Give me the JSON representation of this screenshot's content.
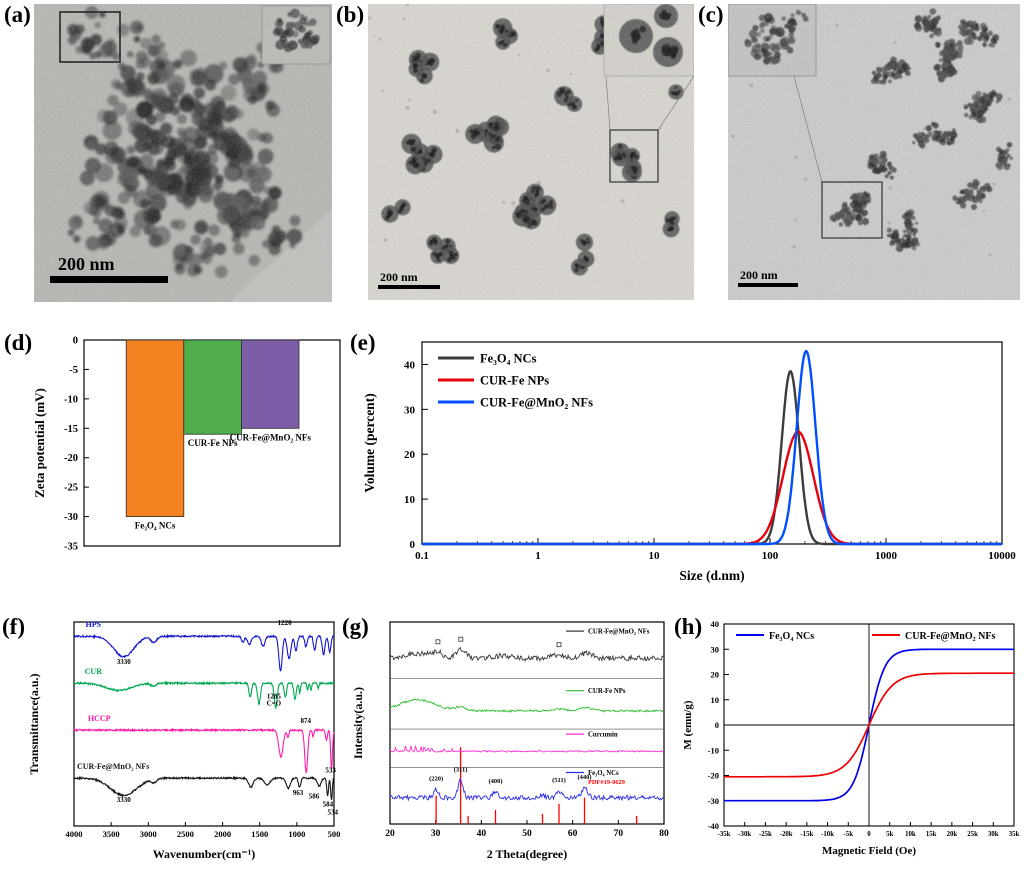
{
  "figure": {
    "panels": {
      "a": {
        "label": "(a)",
        "scale_bar": "200 nm"
      },
      "b": {
        "label": "(b)",
        "scale_bar": "200 nm"
      },
      "c": {
        "label": "(c)",
        "scale_bar": "200 nm"
      },
      "d": {
        "label": "(d)"
      },
      "e": {
        "label": "(e)"
      },
      "f": {
        "label": "(f)"
      },
      "g": {
        "label": "(g)"
      },
      "h": {
        "label": "(h)"
      }
    }
  },
  "chart_data": [
    {
      "id": "zeta",
      "panel": "d",
      "type": "bar",
      "ylabel": "Zeta potential (mV)",
      "ylim": [
        -35,
        0
      ],
      "yticks": [
        0,
        -5,
        -10,
        -15,
        -20,
        -25,
        -30,
        -35
      ],
      "categories": [
        "Fe₃O₄ NCs",
        "CUR-Fe NPs",
        "CUR-Fe@MnO₂ NFs"
      ],
      "values": [
        -30,
        -16,
        -15
      ],
      "colors": [
        "#F58220",
        "#4FAE4A",
        "#7B5EA7"
      ]
    },
    {
      "id": "dls",
      "panel": "e",
      "type": "line",
      "xlabel": "Size (d.nm)",
      "ylabel": "Volume (percent)",
      "xscale": "log",
      "xlim": [
        0.1,
        10000
      ],
      "xticks": [
        "0.1",
        "1",
        "10",
        "100",
        "1000",
        "10000"
      ],
      "ylim": [
        0,
        45
      ],
      "yticks": [
        0,
        10,
        20,
        30,
        40
      ],
      "series": [
        {
          "name": "Fe₃O₄ NCs",
          "color": "#3C3C3C",
          "peak": 150,
          "height": 38.5,
          "sigma": 0.105
        },
        {
          "name": "CUR-Fe NPs",
          "color": "#E8000D",
          "peak": 175,
          "height": 25,
          "sigma": 0.185
        },
        {
          "name": "CUR-Fe@MnO₂ NFs",
          "color": "#0050FF",
          "peak": 205,
          "height": 43,
          "sigma": 0.115
        }
      ]
    },
    {
      "id": "ftir",
      "panel": "f",
      "type": "line",
      "xlabel": "Wavenumber(cm⁻¹)",
      "ylabel": "Transmittance(a.u.)",
      "xlim": [
        4000,
        500
      ],
      "xticks": [
        4000,
        3500,
        3000,
        2500,
        2000,
        1500,
        1000,
        500
      ],
      "series": [
        {
          "name": "HPS",
          "color": "#1414CC",
          "base": 0.93,
          "dips": [
            [
              3330,
              190,
              0.1
            ],
            [
              2925,
              55,
              0.03
            ],
            [
              1725,
              25,
              0.03
            ],
            [
              1640,
              35,
              0.04
            ],
            [
              1455,
              35,
              0.05
            ],
            [
              1220,
              32,
              0.17
            ],
            [
              1105,
              35,
              0.11
            ],
            [
              1012,
              25,
              0.07
            ],
            [
              878,
              22,
              0.05
            ],
            [
              760,
              22,
              0.07
            ],
            [
              640,
              26,
              0.09
            ],
            [
              558,
              22,
              0.08
            ]
          ]
        },
        {
          "name": "CUR",
          "color": "#00A94F",
          "base": 0.7,
          "dips": [
            [
              3400,
              240,
              0.035
            ],
            [
              2930,
              50,
              0.015
            ],
            [
              1628,
              24,
              0.07
            ],
            [
              1510,
              28,
              0.1
            ],
            [
              1285,
              28,
              0.12
            ],
            [
              1155,
              22,
              0.07
            ],
            [
              1025,
              22,
              0.08
            ],
            [
              962,
              14,
              0.05
            ],
            [
              856,
              13,
              0.035
            ],
            [
              810,
              13,
              0.035
            ],
            [
              713,
              13,
              0.025
            ]
          ]
        },
        {
          "name": "HCCP",
          "color": "#FF1AA6",
          "base": 0.47,
          "dips": [
            [
              1215,
              42,
              0.13
            ],
            [
              1120,
              18,
              0.035
            ],
            [
              874,
              28,
              0.21
            ],
            [
              782,
              14,
              0.035
            ],
            [
              602,
              18,
              0.05
            ],
            [
              533,
              17,
              0.19
            ]
          ]
        },
        {
          "name": "CUR-Fe@MnO₂ NFs",
          "color": "#151515",
          "base": 0.235,
          "dips": [
            [
              3330,
              250,
              0.085
            ],
            [
              2920,
              45,
              0.018
            ],
            [
              1620,
              45,
              0.045
            ],
            [
              1400,
              55,
              0.035
            ],
            [
              1115,
              40,
              0.05
            ],
            [
              963,
              22,
              0.045
            ],
            [
              700,
              35,
              0.04
            ],
            [
              586,
              16,
              0.09
            ],
            [
              534,
              15,
              0.11
            ]
          ]
        }
      ],
      "annotations": [
        {
          "text": "3330",
          "x": 3330,
          "y": 0.795
        },
        {
          "text": "1220",
          "x": 1165,
          "y": 0.985
        },
        {
          "text": "1285",
          "x": 1310,
          "y": 0.625
        },
        {
          "text": "C=O",
          "x": 1310,
          "y": 0.59
        },
        {
          "text": "874",
          "x": 880,
          "y": 0.505
        },
        {
          "text": "533",
          "x": 545,
          "y": 0.262
        },
        {
          "text": "3330",
          "x": 3330,
          "y": 0.118
        },
        {
          "text": "963",
          "x": 985,
          "y": 0.152
        },
        {
          "text": "586",
          "x": 770,
          "y": 0.135
        },
        {
          "text": "584",
          "x": 582,
          "y": 0.095
        },
        {
          "text": "534",
          "x": 516,
          "y": 0.057
        }
      ]
    },
    {
      "id": "xrd",
      "panel": "g",
      "type": "line",
      "xlabel": "2 Theta(degree)",
      "ylabel": "Intensity(a.u.)",
      "xlim": [
        20,
        80
      ],
      "xticks": [
        20,
        30,
        40,
        50,
        60,
        70,
        80
      ],
      "dividers": [
        0.72,
        0.47,
        0.28
      ],
      "series": [
        {
          "name": "CUR-Fe@MnO₂ NFs",
          "color": "#3A3A3A",
          "base": 0.82,
          "noise": 0.013,
          "peaks": [
            [
              26,
              4,
              0.025
            ],
            [
              30.5,
              1.5,
              0.025
            ],
            [
              35.5,
              1.5,
              0.045
            ],
            [
              44,
              3,
              0.012
            ],
            [
              57,
              2,
              0.018
            ],
            [
              63,
              2,
              0.025
            ]
          ],
          "markers": [
            30.5,
            35.5,
            57
          ]
        },
        {
          "name": "CUR-Fe NPs",
          "color": "#2FBF2F",
          "base": 0.56,
          "noise": 0.005,
          "peaks": [
            [
              26,
              5.5,
              0.055
            ],
            [
              35.5,
              1.6,
              0.018
            ],
            [
              57,
              2,
              0.01
            ],
            [
              62.8,
              2,
              0.016
            ]
          ]
        },
        {
          "name": "Curcumin",
          "color": "#FF30D0",
          "base": 0.36,
          "noise": 0.0035,
          "peaks": [
            [
              21.2,
              0.15,
              0.02
            ],
            [
              23.4,
              0.15,
              0.028
            ],
            [
              24.6,
              0.15,
              0.03
            ],
            [
              25.6,
              0.15,
              0.026
            ],
            [
              26.8,
              0.15,
              0.02
            ],
            [
              27.5,
              0.15,
              0.03
            ],
            [
              28.3,
              0.15,
              0.022
            ],
            [
              29.1,
              0.15,
              0.018
            ],
            [
              31.8,
              0.15,
              0.012
            ],
            [
              33.6,
              0.15,
              0.01
            ]
          ]
        },
        {
          "name": "Fe₃O₄ NCs",
          "color": "#2B2BE8",
          "base": 0.13,
          "noise": 0.011,
          "peaks": [
            [
              30.1,
              0.8,
              0.04
            ],
            [
              35.45,
              0.8,
              0.085
            ],
            [
              43.1,
              0.8,
              0.028
            ],
            [
              53.4,
              0.8,
              0.014
            ],
            [
              57.0,
              0.8,
              0.032
            ],
            [
              62.6,
              0.9,
              0.048
            ]
          ],
          "sub": "PDF#19-0629",
          "subcolor": "#FF0000"
        }
      ],
      "peak_labels": [
        {
          "text": "(220)",
          "x": 30.1
        },
        {
          "text": "(311)",
          "x": 35.45
        },
        {
          "text": "(400)",
          "x": 43.1
        },
        {
          "text": "(511)",
          "x": 57.0
        },
        {
          "text": "(440)",
          "x": 62.6
        }
      ],
      "ref_sticks": {
        "color": "#FF0000",
        "lines": [
          [
            30.1,
            0.14
          ],
          [
            35.45,
            0.38
          ],
          [
            37.1,
            0.04
          ],
          [
            43.1,
            0.07
          ],
          [
            53.4,
            0.05
          ],
          [
            57.0,
            0.1
          ],
          [
            62.6,
            0.13
          ],
          [
            74.0,
            0.04
          ]
        ]
      }
    },
    {
      "id": "mh",
      "panel": "h",
      "type": "line",
      "xlabel": "Magnetic Field (Oe)",
      "ylabel": "M (emu/g)",
      "xlim": [
        -35000,
        35000
      ],
      "xtick_labels": [
        "-35k",
        "-30k",
        "-25k",
        "-20k",
        "-15k",
        "-10k",
        "-5k",
        "0",
        "5k",
        "10k",
        "15k",
        "20k",
        "25k",
        "30k",
        "35k"
      ],
      "ylim": [
        -40,
        40
      ],
      "yticks": [
        -40,
        -30,
        -20,
        -10,
        0,
        10,
        20,
        30,
        40
      ],
      "series": [
        {
          "name": "Fe₃O₄ NCs",
          "color": "#0000EE",
          "saturation": 30,
          "softness": 3800
        },
        {
          "name": "CUR-Fe@MnO₂ NFs",
          "color": "#EE0000",
          "saturation": 20.5,
          "softness": 5600
        }
      ]
    }
  ]
}
